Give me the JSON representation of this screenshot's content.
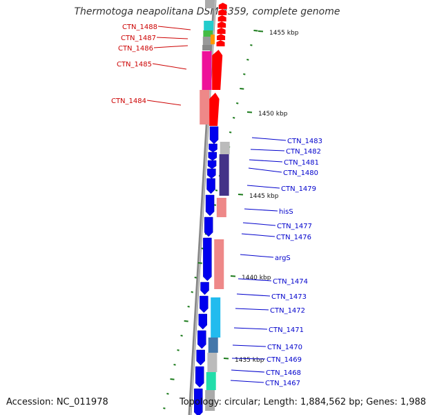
{
  "title": "Thermotoga neapolitana DSM 4359, complete genome",
  "footer": {
    "accession": "Accession: NC_011978",
    "topology": "Topology: circular; Length: 1,884,562 bp; Genes: 1,988"
  },
  "colors": {
    "forward_label": "#cc0000",
    "reverse_label": "#0000cc",
    "forward_strand": "#ff0000",
    "reverse_strand": "#0000ee",
    "backbone": "#888888",
    "gc_tick": "#1a7a1a"
  },
  "kbp_ticks": [
    {
      "label": "1455 kbp"
    },
    {
      "label": "1450 kbp"
    },
    {
      "label": "1445 kbp"
    },
    {
      "label": "1440 kbp"
    },
    {
      "label": "1435 kbp"
    }
  ],
  "forward_genes": [
    {
      "label": "CTN_1488",
      "icon": "arrow-up"
    },
    {
      "label": "CTN_1487",
      "icon": "arrow-up"
    },
    {
      "label": "CTN_1486",
      "icon": "arrow-up"
    },
    {
      "label": "CTN_1485",
      "icon": "arrow-up"
    },
    {
      "label": "CTN_1484",
      "icon": "arrow-up"
    }
  ],
  "reverse_genes": [
    {
      "label": "CTN_1483",
      "icon": "arrow-down"
    },
    {
      "label": "CTN_1482",
      "icon": "arrow-down"
    },
    {
      "label": "CTN_1481",
      "icon": "arrow-down"
    },
    {
      "label": "CTN_1480",
      "icon": "arrow-down"
    },
    {
      "label": "CTN_1479",
      "icon": "arrow-down"
    },
    {
      "label": "hisS",
      "icon": "arrow-down"
    },
    {
      "label": "CTN_1477",
      "icon": "arrow-down"
    },
    {
      "label": "CTN_1476",
      "icon": "arrow-down"
    },
    {
      "label": "argS",
      "icon": "arrow-down"
    },
    {
      "label": "CTN_1474",
      "icon": "arrow-down"
    },
    {
      "label": "CTN_1473",
      "icon": "arrow-down"
    },
    {
      "label": "CTN_1472",
      "icon": "arrow-down"
    },
    {
      "label": "CTN_1471",
      "icon": "arrow-down"
    },
    {
      "label": "CTN_1470",
      "icon": "arrow-down"
    },
    {
      "label": "CTN_1469",
      "icon": "arrow-down"
    },
    {
      "label": "CTN_1468",
      "icon": "arrow-down"
    },
    {
      "label": "CTN_1467",
      "icon": "arrow-down"
    }
  ]
}
